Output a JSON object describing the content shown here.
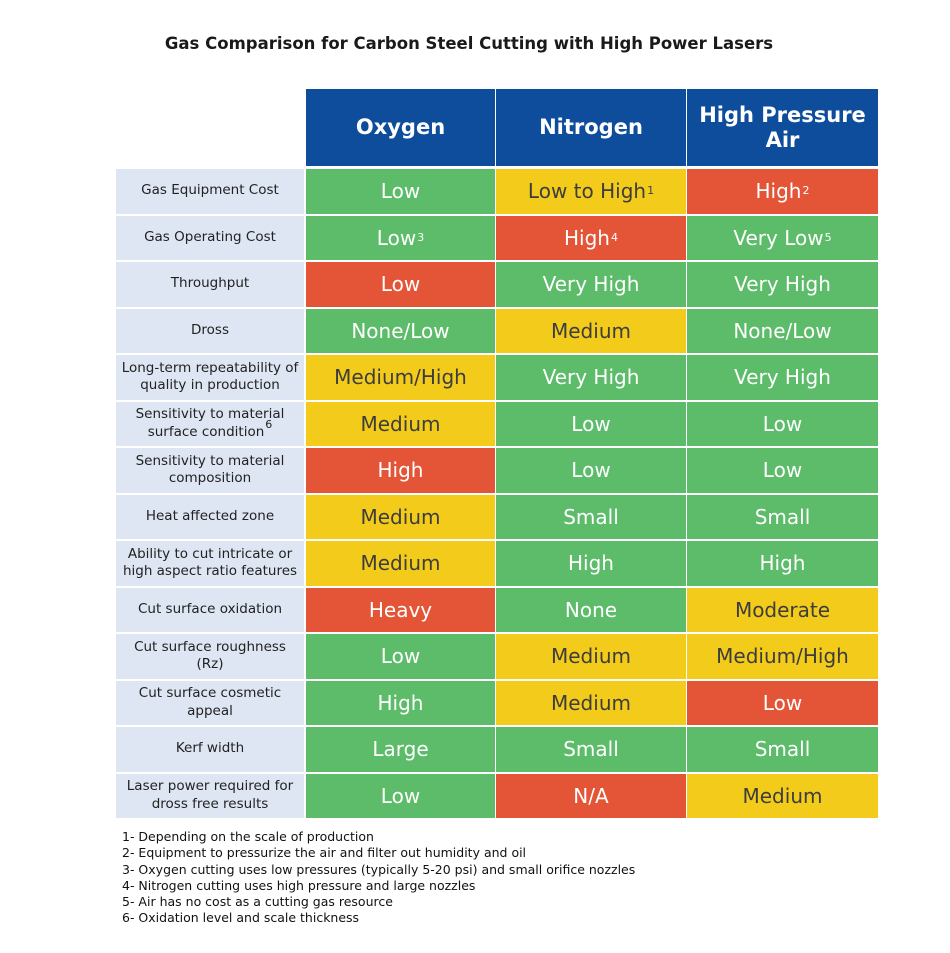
{
  "chart_data": {
    "type": "table",
    "title": "Gas Comparison for Carbon Steel Cutting with High Power Lasers",
    "columns": [
      {
        "label": "Oxygen"
      },
      {
        "label": "Nitrogen"
      },
      {
        "label": "High Pressure Air"
      }
    ],
    "rows": [
      {
        "label": "Gas Equipment Cost",
        "cells": [
          {
            "text": "Low",
            "sup": "",
            "rating": "green"
          },
          {
            "text": "Low to High",
            "sup": "1",
            "rating": "yellow"
          },
          {
            "text": "High",
            "sup": "2",
            "rating": "red"
          }
        ]
      },
      {
        "label": "Gas Operating Cost",
        "cells": [
          {
            "text": "Low",
            "sup": "3",
            "rating": "green"
          },
          {
            "text": "High",
            "sup": "4",
            "rating": "red"
          },
          {
            "text": "Very Low",
            "sup": "5",
            "rating": "green"
          }
        ]
      },
      {
        "label": "Throughput",
        "cells": [
          {
            "text": "Low",
            "sup": "",
            "rating": "red"
          },
          {
            "text": "Very High",
            "sup": "",
            "rating": "green"
          },
          {
            "text": "Very High",
            "sup": "",
            "rating": "green"
          }
        ]
      },
      {
        "label": "Dross",
        "cells": [
          {
            "text": "None/Low",
            "sup": "",
            "rating": "green"
          },
          {
            "text": "Medium",
            "sup": "",
            "rating": "yellow"
          },
          {
            "text": "None/Low",
            "sup": "",
            "rating": "green"
          }
        ]
      },
      {
        "label": "Long-term repeatability of quality in production",
        "cells": [
          {
            "text": "Medium/High",
            "sup": "",
            "rating": "yellow"
          },
          {
            "text": "Very High",
            "sup": "",
            "rating": "green"
          },
          {
            "text": "Very High",
            "sup": "",
            "rating": "green"
          }
        ]
      },
      {
        "label": "Sensitivity to material surface condition",
        "label_sup": "6",
        "cells": [
          {
            "text": "Medium",
            "sup": "",
            "rating": "yellow"
          },
          {
            "text": "Low",
            "sup": "",
            "rating": "green"
          },
          {
            "text": "Low",
            "sup": "",
            "rating": "green"
          }
        ]
      },
      {
        "label": "Sensitivity to material composition",
        "cells": [
          {
            "text": "High",
            "sup": "",
            "rating": "red"
          },
          {
            "text": "Low",
            "sup": "",
            "rating": "green"
          },
          {
            "text": "Low",
            "sup": "",
            "rating": "green"
          }
        ]
      },
      {
        "label": "Heat affected zone",
        "cells": [
          {
            "text": "Medium",
            "sup": "",
            "rating": "yellow"
          },
          {
            "text": "Small",
            "sup": "",
            "rating": "green"
          },
          {
            "text": "Small",
            "sup": "",
            "rating": "green"
          }
        ]
      },
      {
        "label": "Ability to cut intricate or high aspect ratio features",
        "cells": [
          {
            "text": "Medium",
            "sup": "",
            "rating": "yellow"
          },
          {
            "text": "High",
            "sup": "",
            "rating": "green"
          },
          {
            "text": "High",
            "sup": "",
            "rating": "green"
          }
        ]
      },
      {
        "label": "Cut surface oxidation",
        "cells": [
          {
            "text": "Heavy",
            "sup": "",
            "rating": "red"
          },
          {
            "text": "None",
            "sup": "",
            "rating": "green"
          },
          {
            "text": "Moderate",
            "sup": "",
            "rating": "yellow"
          }
        ]
      },
      {
        "label": "Cut surface roughness (Rz)",
        "cells": [
          {
            "text": "Low",
            "sup": "",
            "rating": "green"
          },
          {
            "text": "Medium",
            "sup": "",
            "rating": "yellow"
          },
          {
            "text": "Medium/High",
            "sup": "",
            "rating": "yellow"
          }
        ]
      },
      {
        "label": "Cut surface cosmetic appeal",
        "cells": [
          {
            "text": "High",
            "sup": "",
            "rating": "green"
          },
          {
            "text": "Medium",
            "sup": "",
            "rating": "yellow"
          },
          {
            "text": "Low",
            "sup": "",
            "rating": "red"
          }
        ]
      },
      {
        "label": "Kerf width",
        "cells": [
          {
            "text": "Large",
            "sup": "",
            "rating": "green"
          },
          {
            "text": "Small",
            "sup": "",
            "rating": "green"
          },
          {
            "text": "Small",
            "sup": "",
            "rating": "green"
          }
        ]
      },
      {
        "label": "Laser power required for dross free results",
        "cells": [
          {
            "text": "Low",
            "sup": "",
            "rating": "green"
          },
          {
            "text": "N/A",
            "sup": "",
            "rating": "red"
          },
          {
            "text": "Medium",
            "sup": "",
            "rating": "yellow"
          }
        ]
      }
    ],
    "footnotes": [
      "1- Depending on the scale of production",
      "2- Equipment to pressurize the air and filter out humidity and oil",
      "3- Oxygen cutting uses low pressures (typically 5-20 psi) and small orifice nozzles",
      "4- Nitrogen cutting uses high pressure and large nozzles",
      "5- Air has no cost as a cutting gas resource",
      "6- Oxidation level and scale thickness"
    ],
    "colors": {
      "header": "#0d4d9b",
      "row_label": "#dde6f2",
      "green": "#5cbc69",
      "red": "#e45437",
      "yellow": "#f3cb1a"
    }
  }
}
